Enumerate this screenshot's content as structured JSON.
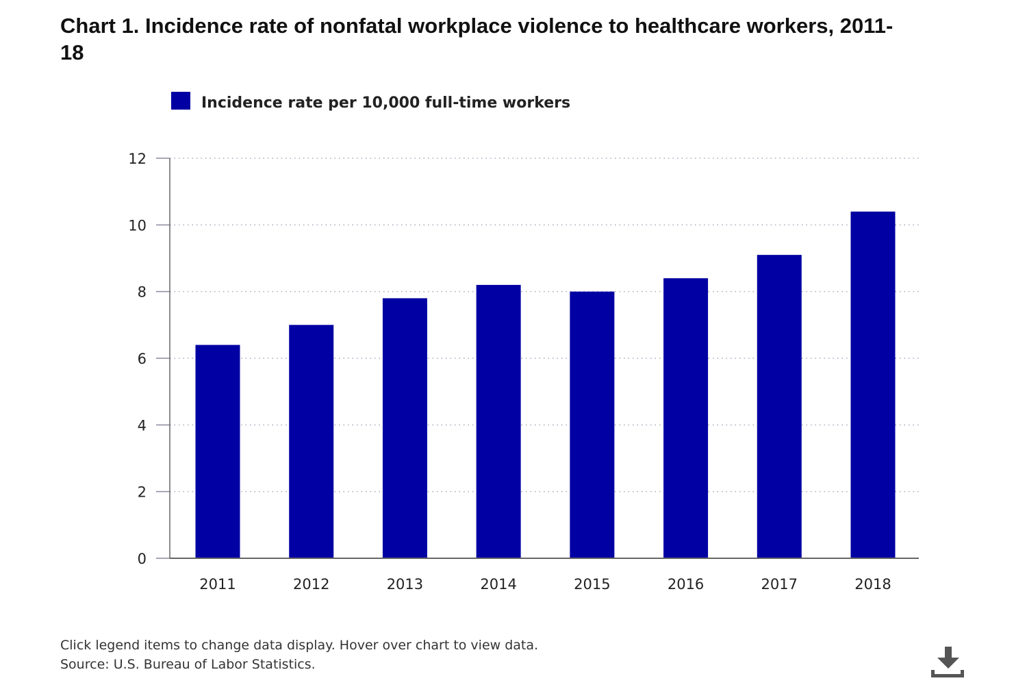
{
  "chart_data": {
    "type": "bar",
    "title": "Chart 1. Incidence rate of nonfatal workplace violence to healthcare workers, 2011-18",
    "categories": [
      "2011",
      "2012",
      "2013",
      "2014",
      "2015",
      "2016",
      "2017",
      "2018"
    ],
    "series": [
      {
        "name": "Incidence rate per 10,000 full-time workers",
        "color": "#0000A3",
        "values": [
          6.4,
          7.0,
          7.8,
          8.2,
          8.0,
          8.4,
          9.1,
          10.4
        ]
      }
    ],
    "xlabel": "",
    "ylabel": "",
    "ylim": [
      0,
      12
    ],
    "yticks": [
      "0",
      "2",
      "4",
      "6",
      "8",
      "10",
      "12"
    ],
    "grid": true,
    "legend_position": "top-left"
  },
  "footer": {
    "instructions": "Click legend items to change data display. Hover over chart to view data.",
    "source": "Source: U.S. Bureau of Labor Statistics."
  },
  "download": {
    "icon": "download-icon"
  }
}
